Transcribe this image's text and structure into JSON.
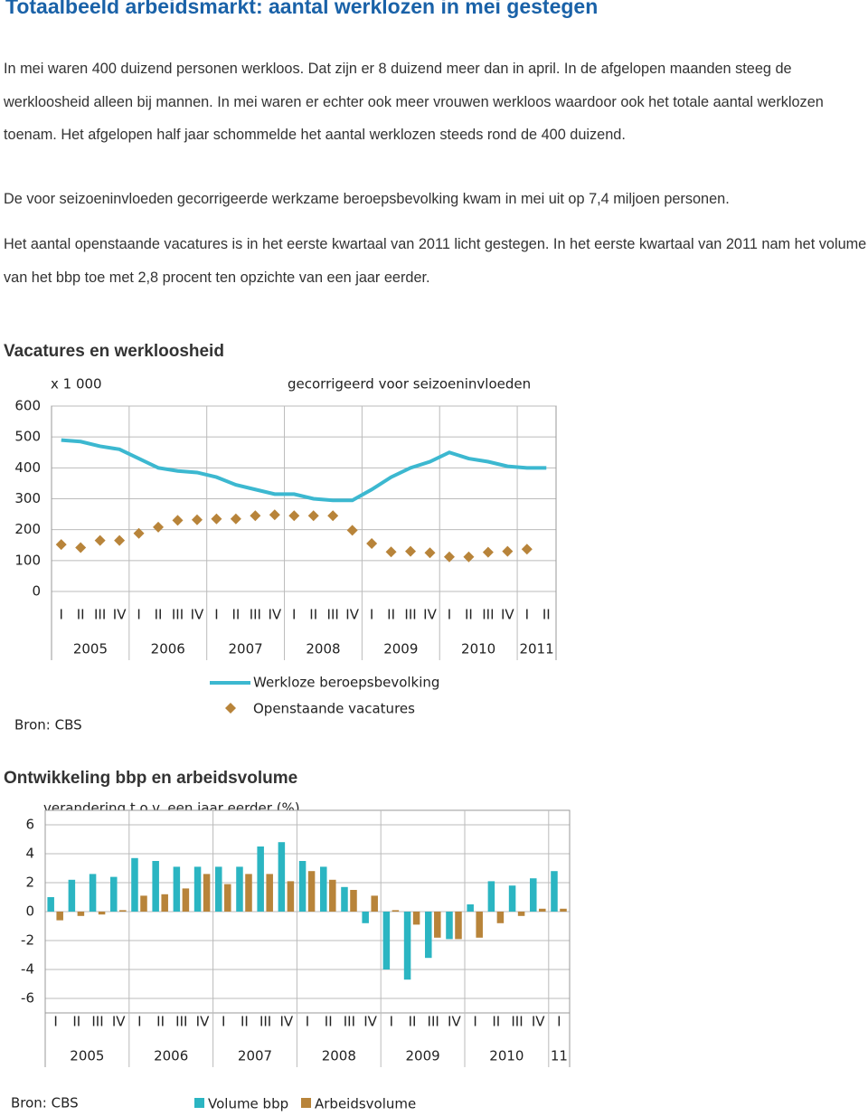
{
  "title": "Totaalbeeld arbeidsmarkt: aantal werklozen in mei gestegen",
  "paragraphs": [
    "In mei waren 400 duizend personen werkloos. Dat zijn er 8 duizend meer dan in april. In de afgelopen maanden steeg de werkloosheid alleen bij mannen. In mei waren er echter ook meer vrouwen werkloos waardoor ook het totale aantal werklozen toenam. Het afgelopen half jaar schommelde het aantal werklozen steeds rond de 400 duizend.",
    "De voor seizoeninvloeden gecorrigeerde werkzame beroepsbevolking kwam in mei uit op 7,4 miljoen personen.",
    "Het aantal openstaande vacatures is in het eerste kwartaal van 2011 licht gestegen. In het eerste kwartaal van 2011 nam het volume van het bbp toe met 2,8 procent ten opzichte van een jaar eerder."
  ],
  "chart_data": [
    {
      "type": "line",
      "title": "Vacatures en werkloosheid",
      "y_label": "x 1 000",
      "subtitle": "gecorrigeerd voor seizoeninvloeden",
      "categories": [
        "I",
        "II",
        "III",
        "IV",
        "I",
        "II",
        "III",
        "IV",
        "I",
        "II",
        "III",
        "IV",
        "I",
        "II",
        "III",
        "IV",
        "I",
        "II",
        "III",
        "IV",
        "I",
        "II",
        "III",
        "IV",
        "I",
        "II"
      ],
      "years": [
        "2005",
        "2006",
        "2007",
        "2008",
        "2009",
        "2010",
        "2011"
      ],
      "series": [
        {
          "name": "Werkloze beroepsbevolking",
          "type": "line",
          "color": "#3cb8d0",
          "values": [
            490,
            485,
            470,
            460,
            430,
            400,
            390,
            385,
            370,
            345,
            330,
            315,
            315,
            300,
            295,
            295,
            330,
            370,
            400,
            420,
            450,
            430,
            420,
            405,
            400,
            400
          ]
        },
        {
          "name": "Openstaande vacatures",
          "type": "scatter",
          "color": "#b8843a",
          "values": [
            152,
            142,
            165,
            165,
            188,
            208,
            230,
            232,
            235,
            235,
            245,
            248,
            245,
            245,
            245,
            198,
            155,
            128,
            130,
            125,
            112,
            112,
            127,
            130,
            137,
            null
          ]
        }
      ],
      "ylim": [
        0,
        600
      ],
      "yticks": [
        0,
        100,
        200,
        300,
        400,
        500,
        600
      ],
      "grid": true,
      "source": "Bron: CBS"
    },
    {
      "type": "bar",
      "title": "Ontwikkeling bbp en arbeidsvolume",
      "y_label": "verandering t.o.v. een jaar eerder (%)",
      "categories": [
        "I",
        "II",
        "III",
        "IV",
        "I",
        "II",
        "III",
        "IV",
        "I",
        "II",
        "III",
        "IV",
        "I",
        "II",
        "III",
        "IV",
        "I",
        "II",
        "III",
        "IV",
        "I",
        "II",
        "III",
        "IV",
        "I"
      ],
      "years": [
        "2005",
        "2006",
        "2007",
        "2008",
        "2009",
        "2010",
        "11"
      ],
      "series": [
        {
          "name": "Volume bbp",
          "color": "#2bb5c2",
          "values": [
            1.0,
            2.2,
            2.6,
            2.4,
            3.7,
            3.5,
            3.1,
            3.1,
            3.1,
            3.1,
            4.5,
            4.8,
            3.5,
            3.1,
            1.7,
            -0.8,
            -4.0,
            -4.7,
            -3.2,
            -1.9,
            0.5,
            2.1,
            1.8,
            2.3,
            2.8
          ]
        },
        {
          "name": "Arbeidsvolume",
          "color": "#b8843a",
          "values": [
            -0.6,
            -0.3,
            -0.2,
            0.1,
            1.1,
            1.2,
            1.6,
            2.6,
            1.9,
            2.6,
            2.6,
            2.1,
            2.8,
            2.2,
            1.5,
            1.1,
            0.1,
            -0.9,
            -1.8,
            -1.9,
            -1.8,
            -0.8,
            -0.3,
            0.2,
            0.2
          ]
        }
      ],
      "ylim": [
        -7,
        7
      ],
      "yticks": [
        -6,
        -4,
        -2,
        0,
        2,
        4,
        6
      ],
      "grid": true,
      "source": "Bron: CBS"
    }
  ]
}
